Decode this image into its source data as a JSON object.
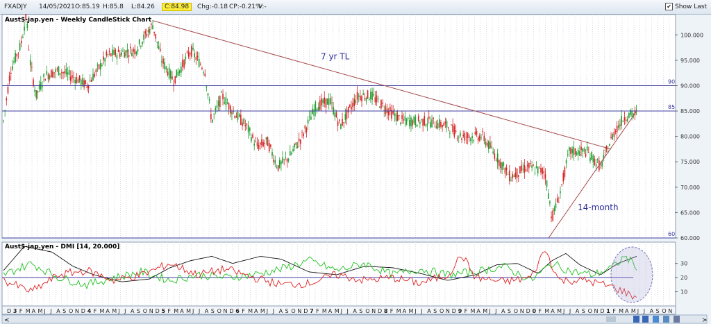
{
  "toolbar": {
    "symbol": "FXADJY",
    "date": "14/05/2021",
    "open": "O:85.19",
    "high": "H:85.8",
    "low": "L:84.26",
    "close": "C:84.98",
    "chg": "Chg:-0.18",
    "cp": "CP:-0.21%",
    "v": "V:-",
    "show_last_label": "Show Last",
    "show_last_checked": true
  },
  "colors": {
    "up": "#1c9a2a",
    "down": "#d42020",
    "trend": "#a64a4a",
    "hline": "#3a3aa0",
    "adx": "#111111",
    "pdi": "#1ec21e",
    "mdi": "#e02020"
  },
  "chart_data": [
    {
      "type": "candlestick",
      "title": "Aust$-jap.yen - Weekly CandleStick Chart",
      "ylim": [
        60,
        104
      ],
      "yticks": [
        "100.000",
        "95.000",
        "90.000",
        "85.000",
        "80.000",
        "75.000",
        "70.000",
        "65.000",
        "60.000"
      ],
      "hlines": [
        {
          "value": 90,
          "label": "90"
        },
        {
          "value": 85,
          "label": "85"
        },
        {
          "value": 60,
          "label": "60"
        }
      ],
      "annotations": [
        {
          "text": "7 yr TL",
          "x": "Jun 2017",
          "y": 95
        },
        {
          "text": "14-month",
          "x": "Jun 2020",
          "y": 66
        }
      ],
      "trendlines": [
        {
          "name": "7 yr TL",
          "from": [
            "Nov 2014",
            102.8
          ],
          "to": [
            "Feb 2021",
            77.5
          ]
        },
        {
          "name": "14-month",
          "from": [
            "Mar 2020",
            60
          ],
          "to": [
            "May 2021",
            85
          ]
        }
      ],
      "price_path": [
        [
          0,
          83
        ],
        [
          10,
          93
        ],
        [
          25,
          98
        ],
        [
          33,
          104
        ],
        [
          38,
          95
        ],
        [
          47,
          88
        ],
        [
          60,
          92
        ],
        [
          80,
          93
        ],
        [
          110,
          91
        ],
        [
          120,
          90
        ],
        [
          150,
          96
        ],
        [
          190,
          97
        ],
        [
          215,
          102
        ],
        [
          228,
          95
        ],
        [
          245,
          91
        ],
        [
          270,
          97
        ],
        [
          290,
          93
        ],
        [
          300,
          83
        ],
        [
          315,
          88
        ],
        [
          330,
          85
        ],
        [
          350,
          82
        ],
        [
          365,
          78
        ],
        [
          380,
          79
        ],
        [
          395,
          74
        ],
        [
          412,
          76
        ],
        [
          430,
          80
        ],
        [
          450,
          86
        ],
        [
          470,
          87
        ],
        [
          485,
          82
        ],
        [
          510,
          88
        ],
        [
          530,
          88
        ],
        [
          555,
          85
        ],
        [
          575,
          83
        ],
        [
          610,
          83
        ],
        [
          640,
          82
        ],
        [
          660,
          80
        ],
        [
          690,
          80
        ],
        [
          710,
          76
        ],
        [
          730,
          72
        ],
        [
          755,
          74
        ],
        [
          780,
          73
        ],
        [
          790,
          64
        ],
        [
          800,
          68
        ],
        [
          815,
          77
        ],
        [
          840,
          77
        ],
        [
          860,
          74
        ],
        [
          880,
          81
        ],
        [
          895,
          84
        ],
        [
          912,
          84.5
        ]
      ]
    },
    {
      "type": "line",
      "title": "Aust$-jap.yen - DMI [14, 20.000]",
      "ylim": [
        0,
        45
      ],
      "yticks": [
        "30",
        "20",
        "10"
      ],
      "hline": 20,
      "series": [
        {
          "color": "#111111",
          "values": [
            [
              0,
              25
            ],
            [
              30,
              42
            ],
            [
              70,
              38
            ],
            [
              100,
              28
            ],
            [
              130,
              22
            ],
            [
              170,
              17
            ],
            [
              210,
              19
            ],
            [
              240,
              27
            ],
            [
              270,
              32
            ],
            [
              300,
              35
            ],
            [
              330,
              30
            ],
            [
              370,
              35
            ],
            [
              400,
              33
            ],
            [
              440,
              24
            ],
            [
              480,
              22
            ],
            [
              520,
              28
            ],
            [
              560,
              27
            ],
            [
              600,
              23
            ],
            [
              640,
              18
            ],
            [
              680,
              22
            ],
            [
              710,
              29
            ],
            [
              740,
              30
            ],
            [
              770,
              23
            ],
            [
              790,
              32
            ],
            [
              810,
              37
            ],
            [
              830,
              29
            ],
            [
              860,
              22
            ],
            [
              885,
              30
            ],
            [
              912,
              35
            ]
          ]
        },
        {
          "color": "#1ec21e",
          "values": [
            [
              0,
              22
            ],
            [
              40,
              30
            ],
            [
              80,
              20
            ],
            [
              120,
              15
            ],
            [
              160,
              20
            ],
            [
              200,
              24
            ],
            [
              240,
              18
            ],
            [
              280,
              22
            ],
            [
              320,
              20
            ],
            [
              360,
              22
            ],
            [
              400,
              26
            ],
            [
              440,
              32
            ],
            [
              480,
              25
            ],
            [
              520,
              30
            ],
            [
              560,
              22
            ],
            [
              600,
              26
            ],
            [
              640,
              22
            ],
            [
              680,
              24
            ],
            [
              720,
              28
            ],
            [
              760,
              18
            ],
            [
              790,
              30
            ],
            [
              820,
              24
            ],
            [
              850,
              22
            ],
            [
              880,
              28
            ],
            [
              895,
              35
            ],
            [
              912,
              28
            ]
          ]
        },
        {
          "color": "#e02020",
          "values": [
            [
              0,
              18
            ],
            [
              40,
              10
            ],
            [
              80,
              22
            ],
            [
              120,
              25
            ],
            [
              160,
              18
            ],
            [
              200,
              22
            ],
            [
              240,
              30
            ],
            [
              280,
              22
            ],
            [
              320,
              26
            ],
            [
              360,
              20
            ],
            [
              400,
              15
            ],
            [
              440,
              16
            ],
            [
              480,
              22
            ],
            [
              520,
              18
            ],
            [
              560,
              20
            ],
            [
              600,
              16
            ],
            [
              640,
              22
            ],
            [
              660,
              36
            ],
            [
              680,
              20
            ],
            [
              720,
              17
            ],
            [
              760,
              20
            ],
            [
              780,
              40
            ],
            [
              800,
              18
            ],
            [
              840,
              18
            ],
            [
              880,
              13
            ],
            [
              912,
              6
            ]
          ]
        }
      ],
      "highlight": {
        "shape": "ellipse",
        "around": "Jan 2021 - May 2021"
      }
    }
  ],
  "xaxis_labels": [
    "D",
    "3",
    "F",
    "M",
    "A",
    "M",
    "J",
    "J",
    "A",
    "S",
    "O",
    "N",
    "D",
    "4",
    "F",
    "M",
    "A",
    "M",
    "J",
    "J",
    "A",
    "S",
    "O",
    "N",
    "D",
    "5",
    "F",
    "M",
    "A",
    "M",
    "J",
    "J",
    "A",
    "S",
    "O",
    "N",
    "D",
    "6",
    "F",
    "M",
    "A",
    "M",
    "J",
    "J",
    "A",
    "S",
    "O",
    "N",
    "D",
    "7",
    "F",
    "M",
    "A",
    "M",
    "J",
    "J",
    "A",
    "S",
    "O",
    "N",
    "D",
    "8",
    "F",
    "M",
    "A",
    "M",
    "J",
    "J",
    "A",
    "S",
    "O",
    "N",
    "D",
    "9",
    "F",
    "M",
    "A",
    "M",
    "J",
    "J",
    "A",
    "S",
    "O",
    "N",
    "D",
    "0",
    "F",
    "M",
    "A",
    "M",
    "J",
    "J",
    "A",
    "S",
    "O",
    "N",
    "D",
    "1",
    "F",
    "M",
    "A",
    "M",
    "J",
    "J",
    "A",
    "S",
    "O",
    "N"
  ]
}
